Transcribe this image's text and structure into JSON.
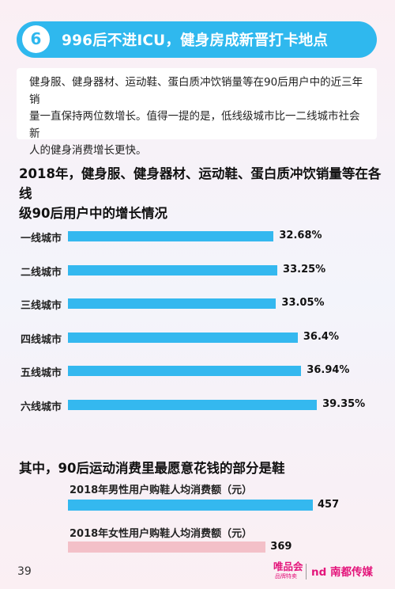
{
  "header": {
    "number": "6",
    "title": "996后不进ICU，健身房成新晋打卡地点"
  },
  "intro": {
    "lines": [
      "健身服、健身器材、运动鞋、蛋白质冲饮销量等在90后用户中的近三年销",
      "量一直保持两位数增长。值得一提的是，低线级城市比一二线城市社会新",
      "人的健身消费增长更快。"
    ]
  },
  "chart_data": [
    {
      "type": "bar",
      "orientation": "horizontal",
      "title_lines": [
        "2018年，健身服、健身器材、运动鞋、蛋白质冲饮销量等在各线",
        "级90后用户中的增长情况"
      ],
      "categories": [
        "一线城市",
        "二线城市",
        "三线城市",
        "四线城市",
        "五线城市",
        "六线城市"
      ],
      "values": [
        32.68,
        33.25,
        33.05,
        36.4,
        36.94,
        39.35
      ],
      "value_labels": [
        "32.68%",
        "33.25%",
        "33.05%",
        "36.4%",
        "36.94%",
        "39.35%"
      ],
      "unit": "%",
      "bar_color": "#34b8ef",
      "grid": false
    },
    {
      "type": "bar",
      "orientation": "horizontal",
      "title": "其中，90后运动消费里最愿意花钱的部分是鞋",
      "categories": [
        "2018年男性用户购鞋人均消费额（元）",
        "2018年女性用户购鞋人均消费额（元）"
      ],
      "values": [
        457,
        369
      ],
      "value_labels": [
        "457",
        "369"
      ],
      "colors": [
        "#34b8ef",
        "#f3c0c8"
      ],
      "grid": false
    }
  ],
  "footer": {
    "page_number": "39",
    "brand_vip": "唯品会",
    "brand_vip_sub": "品牌特卖",
    "brand_nd": "nd 南都传媒"
  },
  "colors": {
    "accent": "#2fb8ee",
    "bar_blue": "#34b8ef",
    "bar_pink": "#f3c0c8",
    "brand_pink": "#e3157b"
  }
}
